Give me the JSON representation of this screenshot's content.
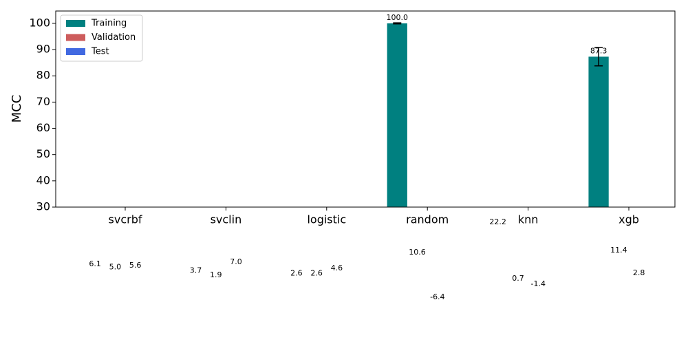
{
  "chart_data": {
    "type": "bar",
    "y_label": "MCC",
    "categories": [
      "svcrbf",
      "svclin",
      "logistic",
      "random",
      "knn",
      "xgb"
    ],
    "series": [
      {
        "name": "Training",
        "color": "#008080",
        "values": [
          6.1,
          3.7,
          2.6,
          100.0,
          22.2,
          87.3
        ],
        "value_labels": [
          "6.1",
          "3.7",
          "2.6",
          "100.0",
          "22.2",
          "87.3"
        ],
        "errors": [
          null,
          null,
          null,
          0.2,
          null,
          3.5
        ]
      },
      {
        "name": "Validation",
        "color": "#cd5c5c",
        "values": [
          5.0,
          1.9,
          2.6,
          10.6,
          0.7,
          11.4
        ],
        "value_labels": [
          "5.0",
          "1.9",
          "2.6",
          "10.6",
          "0.7",
          "11.4"
        ]
      },
      {
        "name": "Test",
        "color": "#4169e1",
        "values": [
          5.6,
          7.0,
          4.6,
          -6.4,
          -1.4,
          2.8
        ],
        "value_labels": [
          "5.6",
          "7.0",
          "4.6",
          "-6.4",
          "-1.4",
          "2.8"
        ]
      }
    ],
    "ylim": [
      30,
      104.7
    ],
    "yticks": [
      30,
      40,
      50,
      60,
      70,
      80,
      90,
      100
    ],
    "legend": "upper left"
  }
}
